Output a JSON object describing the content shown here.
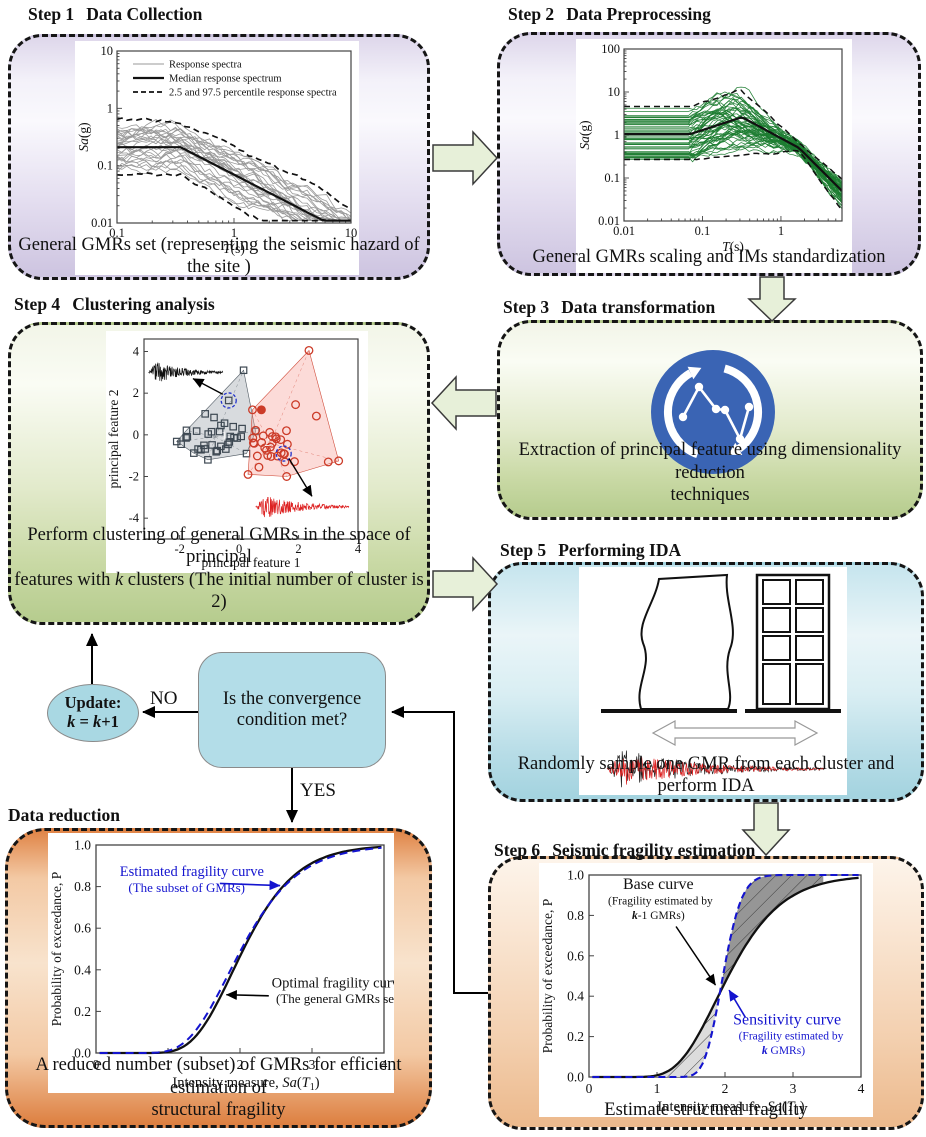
{
  "colors": {
    "panel_purple_bottom": "#cdc4e0",
    "panel_green_bottom": "#b6cc8e",
    "panel_blue_bottom": "#a3d3df",
    "panel_orange_edge": "#dd7f40",
    "block_arrow_fill": "#e7f0d9",
    "decision_fill": "#b3dde8",
    "transform_icon_blue": "#3a64b4",
    "spectra_gray": "#9a9a9a",
    "spectra_green": "#1e7d32",
    "fragility_blue": "#1414cf",
    "cluster1_gray": "#3d4852",
    "cluster2_red": "#cc3b28"
  },
  "steps": {
    "step1": {
      "label": "Step 1",
      "title": "Data Collection",
      "caption": "General GMRs set (representing the seismic hazard of the site )"
    },
    "step2": {
      "label": "Step 2",
      "title": "Data Preprocessing",
      "caption": "General GMRs scaling and IMs standardization"
    },
    "step3": {
      "label": "Step 3",
      "title": "Data transformation",
      "caption_line1": "Extraction of principal feature  using dimensionality reduction",
      "caption_line2": "techniques"
    },
    "step4": {
      "label": "Step 4",
      "title": "Clustering analysis",
      "caption_line1": "Perform clustering of general GMRs  in the space of principal",
      "caption_pre_k": "features with ",
      "caption_k": "k",
      "caption_post_k": " clusters (The initial number of cluster is 2)"
    },
    "step5": {
      "label": "Step 5",
      "title": "Performing IDA",
      "caption": "Randomly sample one GMR from each cluster and perform IDA"
    },
    "step6": {
      "label": "Step 6",
      "title": "Seismic fragility estimation",
      "caption": "Estimate structural fragility"
    },
    "data_reduction": {
      "title": "Data reduction",
      "caption_line1": "A reduced number (subset) of GMRs for efficient estimation of",
      "caption_line2": "structural fragility"
    }
  },
  "flow": {
    "decision_text": "Is the convergence condition met?",
    "no_label": "NO",
    "yes_label": "YES",
    "update_title": "Update:",
    "update_k": "k",
    "update_eq": " = ",
    "update_k2": "k",
    "update_inc": "+1"
  },
  "chart_data": [
    {
      "id": "step1-response-spectra",
      "type": "line",
      "xscale": "log",
      "yscale": "log",
      "xlabel": "T(s)",
      "ylabel": "Sa(g)",
      "xlim": [
        0.1,
        10
      ],
      "ylim": [
        0.01,
        10
      ],
      "xticks": [
        "0.1",
        "1",
        "10"
      ],
      "yticks": [
        "0.01",
        "0.1",
        "1",
        "10"
      ],
      "legend": [
        {
          "label": "Response spectra",
          "color": "#9a9a9a",
          "line": "thin"
        },
        {
          "label": "Median response spectrum",
          "color": "#111111",
          "line": "thick"
        },
        {
          "label": "2.5 and 97.5 percentile response spectra",
          "color": "#111111",
          "line": "dashed"
        }
      ],
      "n_spectra": 30,
      "spectra_color": "#9a9a9a",
      "median_color": "#111111",
      "median_plateau": 0.21,
      "corner_period": 0.35,
      "decay_exponent": -1.05
    },
    {
      "id": "step2-scaled-spectra",
      "type": "line",
      "xscale": "log",
      "yscale": "log",
      "xlabel": "T(s)",
      "ylabel": "Sa(g)",
      "xlim": [
        0.01,
        6
      ],
      "ylim": [
        0.01,
        100
      ],
      "xticks": [
        "0.01",
        "0.1",
        "1"
      ],
      "yticks": [
        "0.01",
        "0.1",
        "1",
        "10",
        "100"
      ],
      "n_spectra": 58,
      "spectra_color": "#1e7d32",
      "median_color": "#111111",
      "crossing_period": 1.7,
      "crossing_value": 0.5
    },
    {
      "id": "step4-principal-features",
      "type": "scatter",
      "xlabel": "principal feature 1",
      "ylabel": "principal feature 2",
      "xlim": [
        -3.2,
        4
      ],
      "ylim": [
        -5,
        4.6
      ],
      "xticks": [
        "-2",
        "0",
        "2",
        "4"
      ],
      "yticks": [
        "-4",
        "-2",
        "0",
        "2",
        "4"
      ],
      "clusters": [
        {
          "label": "1",
          "marker": "square",
          "color": "#3d4852",
          "hull_fill": "rgba(160,168,175,0.45)",
          "n_points": 36
        },
        {
          "label": "2",
          "marker": "circle",
          "color": "#cc3b28",
          "hull_fill": "rgba(246,160,150,0.42)",
          "n_points": 36
        }
      ]
    },
    {
      "id": "data-reduction-fragility",
      "type": "line",
      "xlabel": "Intensity measure, Sa(T1)",
      "ylabel": "Probability of exceedance, P",
      "xlim": [
        0,
        4
      ],
      "ylim": [
        0,
        1
      ],
      "xticks": [
        "0",
        "1",
        "2",
        "3",
        "4"
      ],
      "yticks": [
        "0.0",
        "0.2",
        "0.4",
        "0.6",
        "0.8",
        "1.0"
      ],
      "curves": [
        {
          "name": "Optimal fragility curve",
          "sub": "(The general GMRs set)",
          "color": "#111111",
          "style": "solid",
          "median": 2.05,
          "beta": 0.28
        },
        {
          "name": "Estimated fragility curve",
          "sub": "(The subset of GMRs)",
          "color": "#1414cf",
          "style": "dashed",
          "median": 2.02,
          "beta": 0.305
        }
      ]
    },
    {
      "id": "step6-fragility-sensitivity",
      "type": "line",
      "xlabel": "Intensity measure, Sa(T1)",
      "ylabel": "Probability of exceedance, P",
      "xlim": [
        0,
        4
      ],
      "ylim": [
        0,
        1
      ],
      "xticks": [
        "0",
        "1",
        "2",
        "3",
        "4"
      ],
      "yticks": [
        "0.0",
        "0.2",
        "0.4",
        "0.6",
        "0.8",
        "1.0"
      ],
      "curves": [
        {
          "name": "Base curve",
          "sub1": "(Fragility estimated by",
          "sub2_k": "k",
          "sub2": "-1 GMRs)",
          "color": "#111111",
          "style": "solid",
          "median": 2.05,
          "beta": 0.3
        },
        {
          "name": "Sensitivity curve",
          "sub1": "(Fragility estimated by",
          "sub2_k": "k",
          "sub2": " GMRs)",
          "color": "#1414cf",
          "style": "dashed",
          "median": 1.97,
          "beta": 0.11
        }
      ]
    }
  ]
}
